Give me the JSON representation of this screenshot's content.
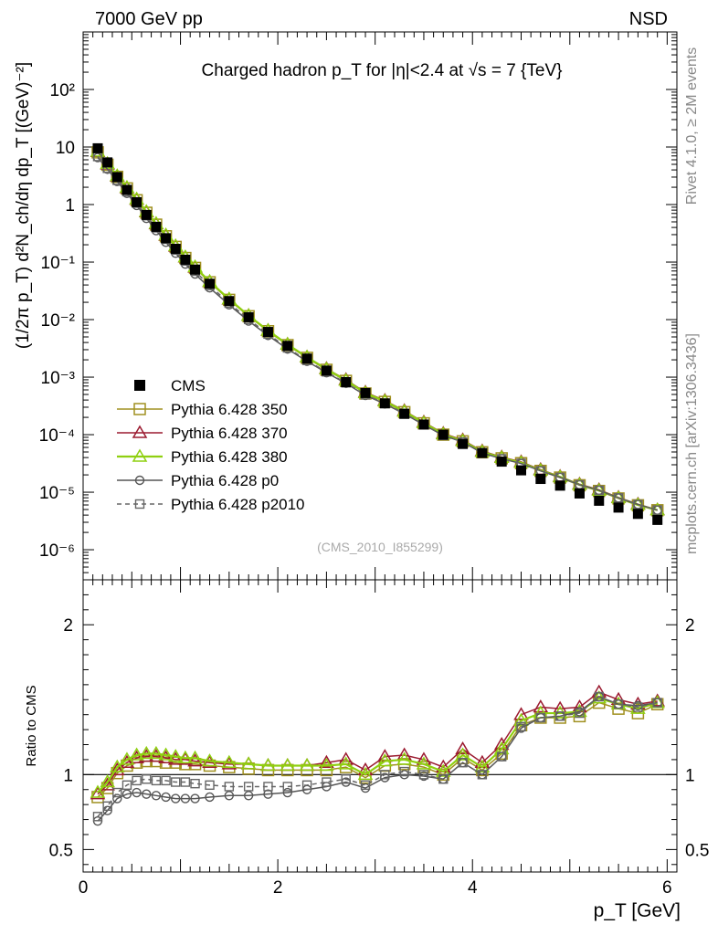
{
  "header": {
    "left": "7000 GeV pp",
    "right": "NSD"
  },
  "side_labels": {
    "top": "Rivet 4.1.0, ≥ 2M events",
    "bottom": "mcplots.cern.ch [arXiv:1306.3436]"
  },
  "analysis_id": "(CMS_2010_I855299)",
  "colors": {
    "data": "#000000",
    "p350": "#a09020",
    "p370": "#9b1b30",
    "p380": "#8fd010",
    "p0": "#555555",
    "p2010": "#666666",
    "side": "#888888"
  },
  "chart_data": [
    {
      "type": "line",
      "title": "Charged hadron p_T for |η|<2.4 at √s = 7 {TeV}",
      "ylabel": "(1/2π p_T) d²N_ch/dη dp_T [(GeV)⁻²]",
      "xlabel": "",
      "yscale": "log",
      "xlim": [
        0,
        6.1
      ],
      "ylim": [
        3e-07,
        1000
      ],
      "ytick_labels": [
        "10⁻⁶",
        "10⁻⁵",
        "10⁻⁴",
        "10⁻³",
        "10⁻²",
        "10⁻¹",
        "1",
        "10",
        "10²"
      ],
      "legend": [
        "CMS",
        "Pythia 6.428 350",
        "Pythia 6.428 370",
        "Pythia 6.428 380",
        "Pythia 6.428 p0",
        "Pythia 6.428 p2010"
      ],
      "x": [
        0.15,
        0.25,
        0.35,
        0.45,
        0.55,
        0.65,
        0.75,
        0.85,
        0.95,
        1.05,
        1.15,
        1.3,
        1.5,
        1.7,
        1.9,
        2.1,
        2.3,
        2.5,
        2.7,
        2.9,
        3.1,
        3.3,
        3.5,
        3.7,
        3.9,
        4.1,
        4.3,
        4.5,
        4.7,
        4.9,
        5.1,
        5.3,
        5.5,
        5.7,
        5.9
      ],
      "series": [
        {
          "name": "CMS",
          "values": [
            9.5,
            5.4,
            3.0,
            1.8,
            1.1,
            0.66,
            0.41,
            0.26,
            0.17,
            0.11,
            0.074,
            0.042,
            0.021,
            0.011,
            0.0061,
            0.0035,
            0.0021,
            0.0013,
            0.00082,
            0.00053,
            0.00035,
            0.00023,
            0.00015,
            0.0001,
            6.9e-05,
            4.8e-05,
            3.4e-05,
            2.4e-05,
            1.7e-05,
            1.3e-05,
            9.5e-06,
            7.1e-06,
            5.4e-06,
            4.2e-06,
            3.3e-06
          ]
        }
      ]
    },
    {
      "type": "line",
      "title": "",
      "xlabel": "p_T [GeV]",
      "ylabel": "Ratio to CMS",
      "xlim": [
        0,
        6.1
      ],
      "ylim": [
        0.35,
        2.3
      ],
      "ytick_labels": [
        "0.5",
        "1",
        "2"
      ],
      "xtick_labels": [
        "0",
        "2",
        "4",
        "6"
      ],
      "reference": 1,
      "x": [
        0.15,
        0.25,
        0.35,
        0.45,
        0.55,
        0.65,
        0.75,
        0.85,
        0.95,
        1.05,
        1.15,
        1.3,
        1.5,
        1.7,
        1.9,
        2.1,
        2.3,
        2.5,
        2.7,
        2.9,
        3.1,
        3.3,
        3.5,
        3.7,
        3.9,
        4.1,
        4.3,
        4.5,
        4.7,
        4.9,
        5.1,
        5.3,
        5.5,
        5.7,
        5.9
      ],
      "series": [
        {
          "name": "Pythia 6.428 350",
          "values": [
            0.85,
            0.91,
            1.01,
            1.06,
            1.08,
            1.09,
            1.09,
            1.08,
            1.08,
            1.07,
            1.07,
            1.06,
            1.05,
            1.04,
            1.03,
            1.03,
            1.03,
            1.03,
            1.05,
            0.98,
            1.06,
            1.07,
            1.05,
            1.0,
            1.11,
            1.03,
            1.14,
            1.33,
            1.38,
            1.38,
            1.39,
            1.48,
            1.44,
            1.41,
            1.47
          ]
        },
        {
          "name": "Pythia 6.428 370",
          "values": [
            0.87,
            0.93,
            1.03,
            1.08,
            1.11,
            1.12,
            1.12,
            1.11,
            1.1,
            1.1,
            1.09,
            1.08,
            1.07,
            1.07,
            1.06,
            1.06,
            1.06,
            1.08,
            1.1,
            1.03,
            1.12,
            1.13,
            1.1,
            1.05,
            1.17,
            1.08,
            1.2,
            1.4,
            1.45,
            1.44,
            1.45,
            1.55,
            1.5,
            1.47,
            1.49
          ]
        },
        {
          "name": "Pythia 6.428 380",
          "values": [
            0.88,
            0.95,
            1.05,
            1.1,
            1.13,
            1.14,
            1.14,
            1.13,
            1.12,
            1.11,
            1.11,
            1.09,
            1.08,
            1.07,
            1.06,
            1.06,
            1.06,
            1.06,
            1.07,
            1.0,
            1.09,
            1.1,
            1.07,
            1.02,
            1.13,
            1.05,
            1.17,
            1.36,
            1.41,
            1.41,
            1.42,
            1.51,
            1.47,
            1.44,
            1.48
          ]
        },
        {
          "name": "Pythia 6.428 p0",
          "values": [
            0.69,
            0.76,
            0.84,
            0.87,
            0.88,
            0.87,
            0.86,
            0.85,
            0.84,
            0.84,
            0.84,
            0.85,
            0.86,
            0.86,
            0.87,
            0.88,
            0.9,
            0.92,
            0.95,
            0.91,
            0.98,
            1.0,
            0.99,
            0.97,
            1.08,
            1.0,
            1.12,
            1.31,
            1.38,
            1.39,
            1.42,
            1.52,
            1.47,
            1.46,
            1.48
          ]
        },
        {
          "name": "Pythia 6.428 p2010",
          "values": [
            0.72,
            0.79,
            0.88,
            0.93,
            0.96,
            0.97,
            0.96,
            0.96,
            0.95,
            0.95,
            0.94,
            0.93,
            0.92,
            0.92,
            0.92,
            0.92,
            0.93,
            0.95,
            0.97,
            0.93,
            1.0,
            1.02,
            1.0,
            0.97,
            1.08,
            1.0,
            1.12,
            1.32,
            1.38,
            1.39,
            1.41,
            1.52,
            1.47,
            1.45,
            1.48
          ]
        }
      ]
    }
  ]
}
